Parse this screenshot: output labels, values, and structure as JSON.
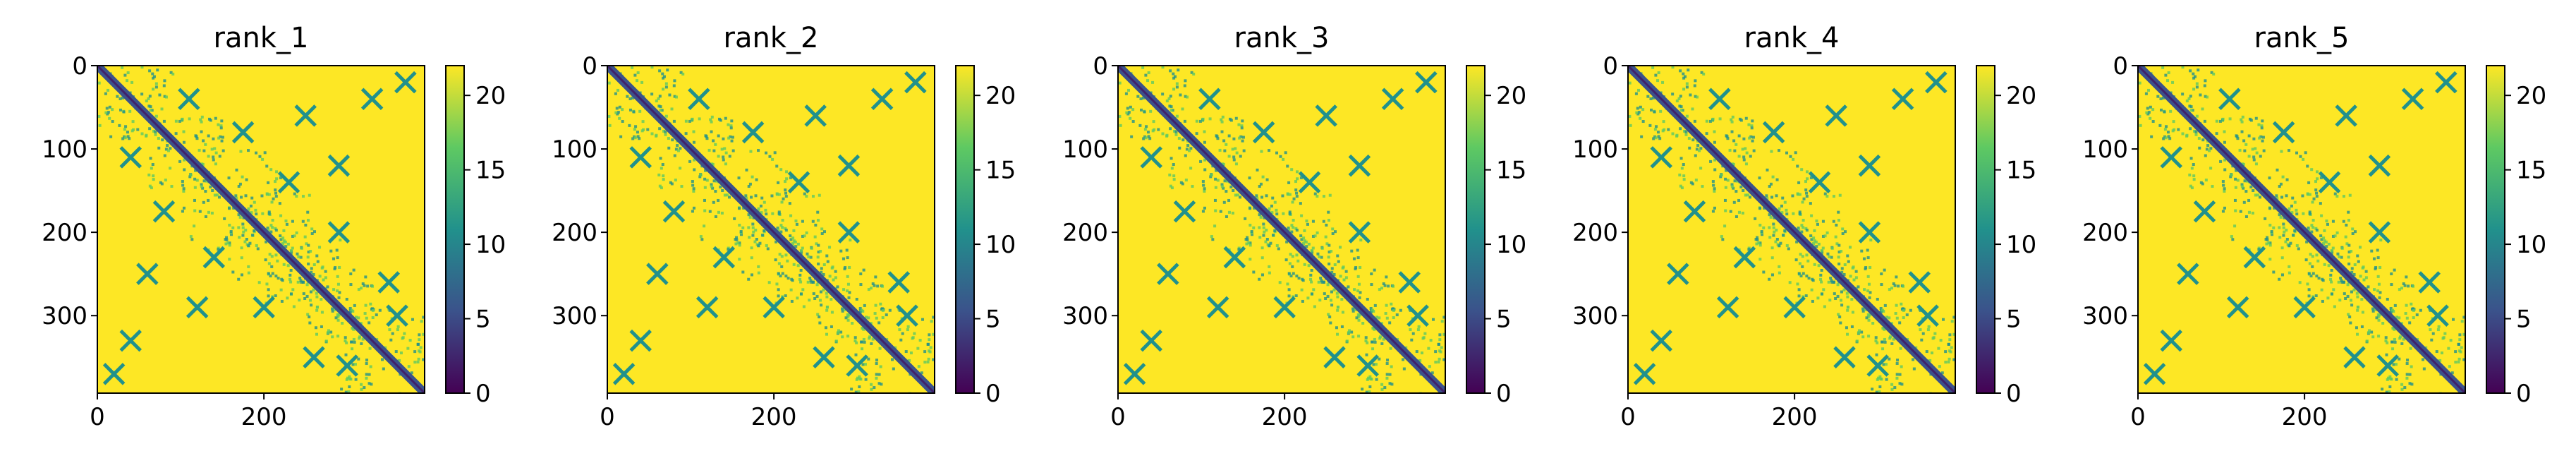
{
  "chart_data": [
    {
      "type": "heatmap",
      "title": "rank_1",
      "xlim": [
        0,
        393
      ],
      "ylim": [
        393,
        0
      ],
      "xticks": [
        0,
        200
      ],
      "yticks": [
        0,
        100,
        200,
        300
      ],
      "colorbar": {
        "min": 0,
        "max": 22,
        "ticks": [
          0,
          5,
          10,
          15,
          20
        ],
        "colormap": "viridis"
      },
      "description_values": {
        "diagonal_distance": 0,
        "background_distance": 22
      }
    },
    {
      "type": "heatmap",
      "title": "rank_2",
      "xlim": [
        0,
        393
      ],
      "ylim": [
        393,
        0
      ],
      "xticks": [
        0,
        200
      ],
      "yticks": [
        0,
        100,
        200,
        300
      ],
      "colorbar": {
        "min": 0,
        "max": 22,
        "ticks": [
          0,
          5,
          10,
          15,
          20
        ],
        "colormap": "viridis"
      },
      "description_values": {
        "diagonal_distance": 0,
        "background_distance": 22
      }
    },
    {
      "type": "heatmap",
      "title": "rank_3",
      "xlim": [
        0,
        393
      ],
      "ylim": [
        393,
        0
      ],
      "xticks": [
        0,
        200
      ],
      "yticks": [
        0,
        100,
        200,
        300
      ],
      "colorbar": {
        "min": 0,
        "max": 22,
        "ticks": [
          0,
          5,
          10,
          15,
          20
        ],
        "colormap": "viridis"
      },
      "description_values": {
        "diagonal_distance": 0,
        "background_distance": 22
      }
    },
    {
      "type": "heatmap",
      "title": "rank_4",
      "xlim": [
        0,
        393
      ],
      "ylim": [
        393,
        0
      ],
      "xticks": [
        0,
        200
      ],
      "yticks": [
        0,
        100,
        200,
        300
      ],
      "colorbar": {
        "min": 0,
        "max": 22,
        "ticks": [
          0,
          5,
          10,
          15,
          20
        ],
        "colormap": "viridis"
      },
      "description_values": {
        "diagonal_distance": 0,
        "background_distance": 22
      }
    },
    {
      "type": "heatmap",
      "title": "rank_5",
      "xlim": [
        0,
        393
      ],
      "ylim": [
        393,
        0
      ],
      "xticks": [
        0,
        200
      ],
      "yticks": [
        0,
        100,
        200,
        300
      ],
      "colorbar": {
        "min": 0,
        "max": 22,
        "ticks": [
          0,
          5,
          10,
          15,
          20
        ],
        "colormap": "viridis"
      },
      "description_values": {
        "diagonal_distance": 0,
        "background_distance": 22
      }
    }
  ],
  "colors": {
    "viridis_stops": [
      "#440154",
      "#3b528b",
      "#21918c",
      "#5ec962",
      "#fde725"
    ]
  }
}
